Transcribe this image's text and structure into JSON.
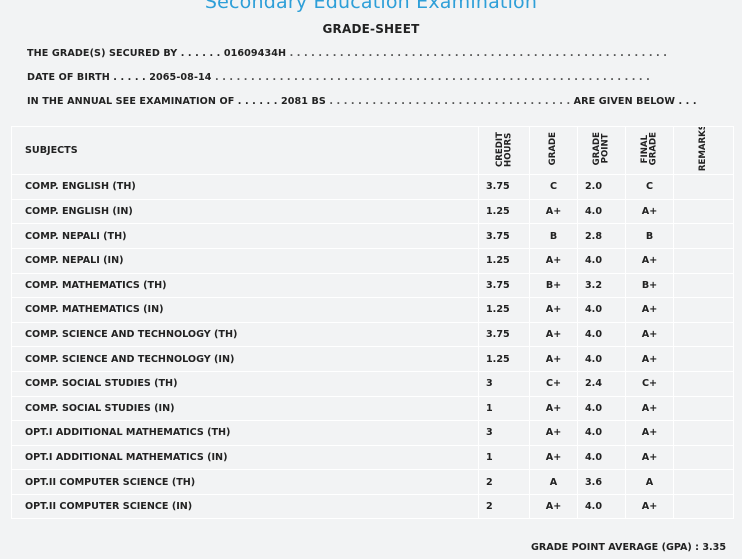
{
  "exam_title": "Secondary Education Examination",
  "sheet_title": "GRADE-SHEET",
  "info": {
    "secured_label": "THE GRADE(S) SECURED BY . . . . . .",
    "symbol_no": "01609434H",
    "secured_dots": ". . . . . . . . . . . . . . . . . . . . . . . . . . . . . . . . . . . . . . . . . . . . . . . . . . . . .",
    "dob_label": "DATE OF BIRTH . . . . .",
    "dob": "2065-08-14",
    "dob_dots": ". . . . . . . . . . . . . . . . . . . . . . . . . . . . . . . . . . . . . . . . . . . . . . . . . . . . . . . . . . . . .",
    "exam_label": "IN THE ANNUAL SEE EXAMINATION OF . . . . . .",
    "exam_year": "2081 BS",
    "exam_dots": ". . . . . . . . . . . . . . . . . . . . . . . . . . . . . . . . . .",
    "exam_tail": "ARE GIVEN BELOW . . ."
  },
  "table": {
    "headers": {
      "subjects": "SUBJECTS",
      "credit_hours": [
        "CREDIT",
        "HOURS"
      ],
      "grade": "GRADE",
      "grade_point": [
        "GRADE",
        "POINT"
      ],
      "final_grade": [
        "FINAL",
        "GRADE"
      ],
      "remarks": "REMARKS"
    },
    "rows": [
      {
        "subject": "COMP. ENGLISH (TH)",
        "credit": "3.75",
        "grade": "C",
        "point": "2.0",
        "final": "C",
        "remarks": ""
      },
      {
        "subject": "COMP. ENGLISH (IN)",
        "credit": "1.25",
        "grade": "A+",
        "point": "4.0",
        "final": "A+",
        "remarks": ""
      },
      {
        "subject": "COMP. NEPALI (TH)",
        "credit": "3.75",
        "grade": "B",
        "point": "2.8",
        "final": "B",
        "remarks": ""
      },
      {
        "subject": "COMP. NEPALI (IN)",
        "credit": "1.25",
        "grade": "A+",
        "point": "4.0",
        "final": "A+",
        "remarks": ""
      },
      {
        "subject": "COMP. MATHEMATICS (TH)",
        "credit": "3.75",
        "grade": "B+",
        "point": "3.2",
        "final": "B+",
        "remarks": ""
      },
      {
        "subject": "COMP. MATHEMATICS (IN)",
        "credit": "1.25",
        "grade": "A+",
        "point": "4.0",
        "final": "A+",
        "remarks": ""
      },
      {
        "subject": "COMP. SCIENCE AND TECHNOLOGY (TH)",
        "credit": "3.75",
        "grade": "A+",
        "point": "4.0",
        "final": "A+",
        "remarks": ""
      },
      {
        "subject": "COMP. SCIENCE AND TECHNOLOGY (IN)",
        "credit": "1.25",
        "grade": "A+",
        "point": "4.0",
        "final": "A+",
        "remarks": ""
      },
      {
        "subject": "COMP. SOCIAL STUDIES (TH)",
        "credit": "3",
        "grade": "C+",
        "point": "2.4",
        "final": "C+",
        "remarks": ""
      },
      {
        "subject": "COMP. SOCIAL STUDIES (IN)",
        "credit": "1",
        "grade": "A+",
        "point": "4.0",
        "final": "A+",
        "remarks": ""
      },
      {
        "subject": "OPT.I ADDITIONAL MATHEMATICS (TH)",
        "credit": "3",
        "grade": "A+",
        "point": "4.0",
        "final": "A+",
        "remarks": ""
      },
      {
        "subject": "OPT.I ADDITIONAL MATHEMATICS (IN)",
        "credit": "1",
        "grade": "A+",
        "point": "4.0",
        "final": "A+",
        "remarks": ""
      },
      {
        "subject": "OPT.II COMPUTER SCIENCE (TH)",
        "credit": "2",
        "grade": "A",
        "point": "3.6",
        "final": "A",
        "remarks": ""
      },
      {
        "subject": "OPT.II COMPUTER SCIENCE (IN)",
        "credit": "2",
        "grade": "A+",
        "point": "4.0",
        "final": "A+",
        "remarks": ""
      }
    ]
  },
  "gpa_label": "GRADE POINT AVERAGE (GPA) :",
  "gpa_value": "3.35",
  "colors": {
    "background": "#f2f3f4",
    "title_blue": "#2e9fd8",
    "text": "#222222",
    "cell_border": "#ffffff"
  }
}
